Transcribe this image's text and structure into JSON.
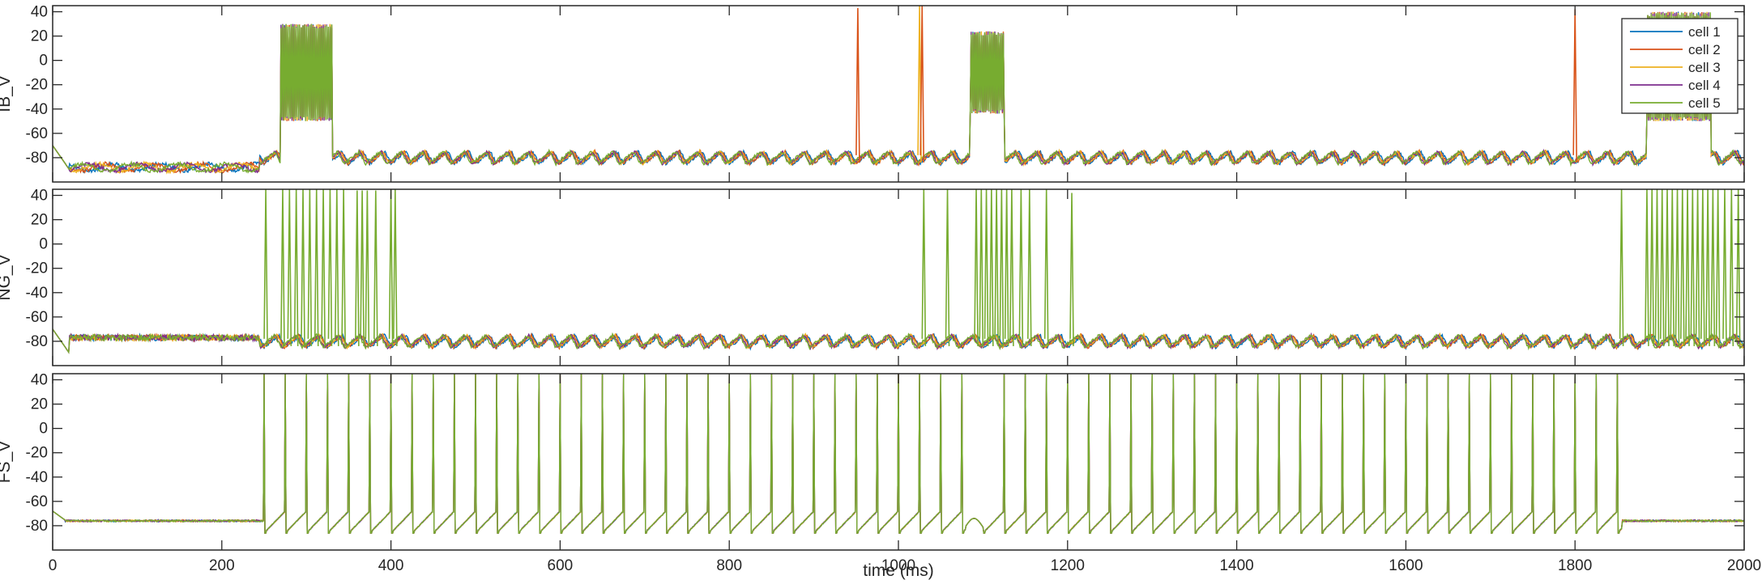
{
  "figure": {
    "xlabel": "time (ms)"
  },
  "chart_data": [
    {
      "type": "line",
      "ylabel": "IB_V",
      "xlim": [
        0,
        2000
      ],
      "ylim": [
        -100,
        45
      ],
      "xticks": [
        0,
        200,
        400,
        600,
        800,
        1000,
        1200,
        1400,
        1600,
        1800,
        2000
      ],
      "yticks": [
        -80,
        -60,
        -40,
        -20,
        0,
        20,
        40
      ],
      "legend": {
        "placement": "top-right",
        "entries": [
          "cell 1",
          "cell 2",
          "cell 3",
          "cell 4",
          "cell 5"
        ]
      },
      "series": [
        {
          "name": "cell 1",
          "color": "#0072BD"
        },
        {
          "name": "cell 2",
          "color": "#D95319"
        },
        {
          "name": "cell 3",
          "color": "#EDB120"
        },
        {
          "name": "cell 4",
          "color": "#7E2F8E"
        },
        {
          "name": "cell 5",
          "color": "#77AC30"
        }
      ],
      "baseline_mV": -80,
      "rest_mV": -88,
      "ripple_period_ms": 25,
      "bursts": [
        {
          "start": 270,
          "end": 330,
          "top": 28,
          "bottom": -48
        },
        {
          "start": 1085,
          "end": 1125,
          "top": 22,
          "bottom": -42
        },
        {
          "start": 1885,
          "end": 1960,
          "top": 38,
          "bottom": -48
        }
      ],
      "spikes": [
        {
          "t": 952,
          "peak": 43,
          "series": "cell 2"
        },
        {
          "t": 1025,
          "peak": 45,
          "series": "cell 3"
        },
        {
          "t": 1028,
          "peak": 45,
          "series": "cell 2"
        },
        {
          "t": 1800,
          "peak": 42,
          "series": "cell 2"
        }
      ]
    },
    {
      "type": "line",
      "ylabel": "NG_V",
      "xlim": [
        0,
        2000
      ],
      "ylim": [
        -100,
        45
      ],
      "xticks": [
        0,
        200,
        400,
        600,
        800,
        1000,
        1200,
        1400,
        1600,
        1800,
        2000
      ],
      "yticks": [
        -80,
        -60,
        -40,
        -20,
        0,
        20,
        40
      ],
      "baseline_mV": -80,
      "rest_mV": -77,
      "ripple_period_ms": 25,
      "spikes": [
        {
          "t": 252,
          "peak": 45
        },
        {
          "t": 272,
          "peak": 45
        },
        {
          "t": 280,
          "peak": 45
        },
        {
          "t": 288,
          "peak": 45
        },
        {
          "t": 296,
          "peak": 45
        },
        {
          "t": 304,
          "peak": 45
        },
        {
          "t": 312,
          "peak": 45
        },
        {
          "t": 320,
          "peak": 45
        },
        {
          "t": 328,
          "peak": 45
        },
        {
          "t": 336,
          "peak": 45
        },
        {
          "t": 344,
          "peak": 45
        },
        {
          "t": 360,
          "peak": 44
        },
        {
          "t": 366,
          "peak": 44
        },
        {
          "t": 372,
          "peak": 44
        },
        {
          "t": 382,
          "peak": 44
        },
        {
          "t": 400,
          "peak": 45
        },
        {
          "t": 405,
          "peak": 45
        },
        {
          "t": 1030,
          "peak": 45
        },
        {
          "t": 1058,
          "peak": 45
        },
        {
          "t": 1092,
          "peak": 45
        },
        {
          "t": 1098,
          "peak": 45
        },
        {
          "t": 1104,
          "peak": 45
        },
        {
          "t": 1110,
          "peak": 45
        },
        {
          "t": 1116,
          "peak": 45
        },
        {
          "t": 1122,
          "peak": 45
        },
        {
          "t": 1128,
          "peak": 45
        },
        {
          "t": 1134,
          "peak": 45
        },
        {
          "t": 1145,
          "peak": 45
        },
        {
          "t": 1155,
          "peak": 45
        },
        {
          "t": 1175,
          "peak": 45
        },
        {
          "t": 1205,
          "peak": 42
        },
        {
          "t": 1855,
          "peak": 45
        },
        {
          "t": 1885,
          "peak": 45
        },
        {
          "t": 1891,
          "peak": 45
        },
        {
          "t": 1897,
          "peak": 45
        },
        {
          "t": 1903,
          "peak": 45
        },
        {
          "t": 1909,
          "peak": 45
        },
        {
          "t": 1915,
          "peak": 45
        },
        {
          "t": 1921,
          "peak": 45
        },
        {
          "t": 1927,
          "peak": 45
        },
        {
          "t": 1933,
          "peak": 45
        },
        {
          "t": 1939,
          "peak": 45
        },
        {
          "t": 1945,
          "peak": 45
        },
        {
          "t": 1951,
          "peak": 45
        },
        {
          "t": 1957,
          "peak": 45
        },
        {
          "t": 1963,
          "peak": 45
        },
        {
          "t": 1969,
          "peak": 45
        },
        {
          "t": 1977,
          "peak": 45
        },
        {
          "t": 1985,
          "peak": 45
        },
        {
          "t": 1993,
          "peak": 45
        }
      ]
    },
    {
      "type": "line",
      "ylabel": "FS_V",
      "xlim": [
        0,
        2000
      ],
      "ylim": [
        -100,
        45
      ],
      "xticks": [
        0,
        200,
        400,
        600,
        800,
        1000,
        1200,
        1400,
        1600,
        1800,
        2000
      ],
      "yticks": [
        -80,
        -60,
        -40,
        -20,
        0,
        20,
        40
      ],
      "baseline_mV": -76,
      "rest_mV": -76,
      "spike_train": {
        "start": 250,
        "end": 1855,
        "period_ms": 25,
        "peak": 45,
        "trough": -86,
        "gap": [
          1080,
          1100
        ]
      }
    }
  ]
}
